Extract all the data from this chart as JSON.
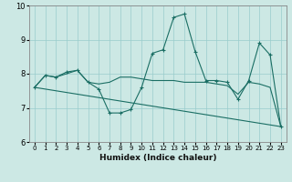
{
  "xlabel": "Humidex (Indice chaleur)",
  "ylabel": "",
  "bg_color": "#cce8e4",
  "line_color": "#1a6e64",
  "grid_color": "#99cccc",
  "xlim": [
    -0.5,
    23.5
  ],
  "ylim": [
    6,
    10
  ],
  "yticks": [
    6,
    7,
    8,
    9,
    10
  ],
  "xticks": [
    0,
    1,
    2,
    3,
    4,
    5,
    6,
    7,
    8,
    9,
    10,
    11,
    12,
    13,
    14,
    15,
    16,
    17,
    18,
    19,
    20,
    21,
    22,
    23
  ],
  "line1_x": [
    0,
    1,
    2,
    3,
    4,
    5,
    6,
    7,
    8,
    9,
    10,
    11,
    12,
    13,
    14,
    15,
    16,
    17,
    18,
    19,
    20,
    21,
    22,
    23
  ],
  "line1_y": [
    7.6,
    7.95,
    7.9,
    8.05,
    8.1,
    7.75,
    7.55,
    6.85,
    6.85,
    6.95,
    7.6,
    8.6,
    8.7,
    9.65,
    9.75,
    8.65,
    7.8,
    7.8,
    7.75,
    7.25,
    7.8,
    8.9,
    8.55,
    6.45
  ],
  "line2_x": [
    0,
    1,
    2,
    3,
    4,
    5,
    6,
    7,
    8,
    9,
    10,
    11,
    12,
    13,
    14,
    15,
    16,
    17,
    18,
    19,
    20,
    21,
    22,
    23
  ],
  "line2_y": [
    7.6,
    7.95,
    7.9,
    8.0,
    8.1,
    7.75,
    7.7,
    7.75,
    7.9,
    7.9,
    7.85,
    7.8,
    7.8,
    7.8,
    7.75,
    7.75,
    7.75,
    7.7,
    7.65,
    7.4,
    7.75,
    7.7,
    7.6,
    6.45
  ],
  "line3_x": [
    0,
    23
  ],
  "line3_y": [
    7.6,
    6.45
  ]
}
